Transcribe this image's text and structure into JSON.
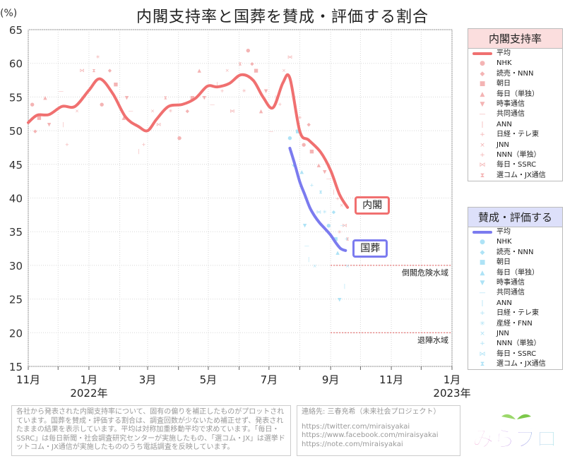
{
  "title": "内閣支持率と国葬を賛成・評価する割合",
  "colors": {
    "cabinet": "#f07070",
    "funeral": "#7b7bef",
    "cabinet_light": "#f4b4b4",
    "funeral_light": "#aee3f6",
    "threshold": "#e05050"
  },
  "chart_data": {
    "type": "line",
    "y_unit": "(%)",
    "ylim": [
      15,
      65
    ],
    "yticks": [
      15,
      20,
      25,
      30,
      35,
      40,
      45,
      50,
      55,
      60,
      65
    ],
    "grid": true,
    "xlim": [
      "2021-11-01",
      "2023-01-01"
    ],
    "x_ticks": [
      {
        "date": "2021-11-01",
        "label": "11月"
      },
      {
        "date": "2022-01-01",
        "label": "1月"
      },
      {
        "date": "2022-03-01",
        "label": "3月"
      },
      {
        "date": "2022-05-01",
        "label": "5月"
      },
      {
        "date": "2022-07-01",
        "label": "7月"
      },
      {
        "date": "2022-09-01",
        "label": "9月"
      },
      {
        "date": "2022-11-01",
        "label": "11月"
      },
      {
        "date": "2023-01-01",
        "label": "1月"
      }
    ],
    "year_labels": [
      {
        "date": "2022-01-01",
        "label": "2022年"
      },
      {
        "date": "2023-01-01",
        "label": "2023年"
      }
    ],
    "thresholds": [
      {
        "value": 30,
        "label": "倒閣危険水域",
        "from": "2022-09-01"
      },
      {
        "value": 20,
        "label": "退陣水域",
        "from": "2022-09-01"
      }
    ],
    "series": [
      {
        "name": "平均",
        "group": "内閣支持率",
        "tag": "内閣",
        "x": [
          "2021-11-01",
          "2021-11-10",
          "2021-11-22",
          "2021-12-05",
          "2021-12-18",
          "2022-01-01",
          "2022-01-12",
          "2022-01-25",
          "2022-02-07",
          "2022-02-20",
          "2022-03-01",
          "2022-03-10",
          "2022-03-22",
          "2022-04-05",
          "2022-04-18",
          "2022-04-30",
          "2022-05-10",
          "2022-05-22",
          "2022-06-03",
          "2022-06-15",
          "2022-06-25",
          "2022-07-05",
          "2022-07-15",
          "2022-07-22",
          "2022-08-01",
          "2022-08-10",
          "2022-08-22",
          "2022-09-01",
          "2022-09-10",
          "2022-09-18"
        ],
        "y": [
          51.2,
          52.3,
          52.4,
          53.6,
          53.6,
          56.0,
          57.7,
          55.5,
          52.0,
          50.6,
          50.0,
          51.7,
          53.6,
          53.9,
          54.8,
          56.6,
          56.5,
          57.0,
          58.3,
          57.5,
          55.0,
          53.4,
          57.1,
          57.8,
          49.9,
          48.6,
          46.8,
          44.1,
          40.5,
          38.6
        ]
      },
      {
        "name": "平均",
        "group": "賛成・評価する",
        "tag": "国葬",
        "x": [
          "2022-07-22",
          "2022-07-27",
          "2022-08-01",
          "2022-08-06",
          "2022-08-11",
          "2022-08-16",
          "2022-08-21",
          "2022-08-26",
          "2022-09-01",
          "2022-09-06",
          "2022-09-11",
          "2022-09-16"
        ],
        "y": [
          47.4,
          45.0,
          42.4,
          40.5,
          38.6,
          37.3,
          36.3,
          35.5,
          34.5,
          33.4,
          32.5,
          32.2
        ]
      }
    ],
    "legend_cabinet": {
      "title": "内閣支持率",
      "items": [
        {
          "label": "平均",
          "marker": "line"
        },
        {
          "label": "NHK",
          "marker": "●"
        },
        {
          "label": "読売・NNN",
          "marker": "◆"
        },
        {
          "label": "朝日",
          "marker": "■"
        },
        {
          "label": "毎日（単独）",
          "marker": "▲"
        },
        {
          "label": "時事通信",
          "marker": "▼"
        },
        {
          "label": "共同通信",
          "marker": "—"
        },
        {
          "label": "ANN",
          "marker": "|"
        },
        {
          "label": "日経・テレ東",
          "marker": "+"
        },
        {
          "label": "JNN",
          "marker": "×"
        },
        {
          "label": "NNN（単独）",
          "marker": "+"
        },
        {
          "label": "毎日・SSRC",
          "marker": "⋈"
        },
        {
          "label": "選コム・JX通信",
          "marker": "⧗"
        }
      ]
    },
    "legend_funeral": {
      "title": "賛成・評価する",
      "items": [
        {
          "label": "平均",
          "marker": "line"
        },
        {
          "label": "NHK",
          "marker": "●"
        },
        {
          "label": "読売・NNN",
          "marker": "◆"
        },
        {
          "label": "朝日",
          "marker": "■"
        },
        {
          "label": "毎日（単独）",
          "marker": "▲"
        },
        {
          "label": "時事通信",
          "marker": "▼"
        },
        {
          "label": "共同通信",
          "marker": "—"
        },
        {
          "label": "ANN",
          "marker": "|"
        },
        {
          "label": "日経・テレ東",
          "marker": "+"
        },
        {
          "label": "産経・FNN",
          "marker": "✳"
        },
        {
          "label": "JNN",
          "marker": "×"
        },
        {
          "label": "NNN（単独）",
          "marker": "+"
        },
        {
          "label": "毎日・SSRC",
          "marker": "⋈"
        },
        {
          "label": "選コム・JX通信",
          "marker": "⧗"
        }
      ]
    },
    "scatter_cabinet": [
      [
        "2021-11-05",
        54
      ],
      [
        "2021-11-08",
        50
      ],
      [
        "2021-11-12",
        52
      ],
      [
        "2021-11-18",
        55
      ],
      [
        "2021-11-22",
        51
      ],
      [
        "2021-12-04",
        56
      ],
      [
        "2021-12-06",
        51
      ],
      [
        "2021-12-10",
        48
      ],
      [
        "2021-12-20",
        53
      ],
      [
        "2021-12-25",
        59
      ],
      [
        "2022-01-06",
        59
      ],
      [
        "2022-01-10",
        61
      ],
      [
        "2022-01-14",
        54
      ],
      [
        "2022-01-22",
        59
      ],
      [
        "2022-01-28",
        57
      ],
      [
        "2022-02-05",
        52
      ],
      [
        "2022-02-08",
        55
      ],
      [
        "2022-02-12",
        53
      ],
      [
        "2022-02-20",
        47
      ],
      [
        "2022-02-25",
        48
      ],
      [
        "2022-03-06",
        53
      ],
      [
        "2022-03-12",
        51
      ],
      [
        "2022-03-19",
        55
      ],
      [
        "2022-03-24",
        53
      ],
      [
        "2022-04-02",
        49
      ],
      [
        "2022-04-10",
        53
      ],
      [
        "2022-04-15",
        55
      ],
      [
        "2022-04-22",
        59
      ],
      [
        "2022-04-27",
        55
      ],
      [
        "2022-05-05",
        54
      ],
      [
        "2022-05-10",
        57
      ],
      [
        "2022-05-15",
        56
      ],
      [
        "2022-05-20",
        59
      ],
      [
        "2022-05-25",
        53
      ],
      [
        "2022-06-02",
        60
      ],
      [
        "2022-06-06",
        56
      ],
      [
        "2022-06-10",
        62
      ],
      [
        "2022-06-14",
        60
      ],
      [
        "2022-06-18",
        59
      ],
      [
        "2022-06-23",
        53
      ],
      [
        "2022-06-28",
        56
      ],
      [
        "2022-07-03",
        50
      ],
      [
        "2022-07-08",
        55
      ],
      [
        "2022-07-12",
        54
      ],
      [
        "2022-07-16",
        59
      ],
      [
        "2022-07-22",
        61
      ],
      [
        "2022-07-26",
        55
      ],
      [
        "2022-08-01",
        52
      ],
      [
        "2022-08-05",
        48
      ],
      [
        "2022-08-10",
        51
      ],
      [
        "2022-08-13",
        47
      ],
      [
        "2022-08-20",
        45
      ],
      [
        "2022-08-26",
        44
      ],
      [
        "2022-08-30",
        43
      ],
      [
        "2022-09-04",
        41
      ],
      [
        "2022-09-08",
        40
      ],
      [
        "2022-09-12",
        39
      ],
      [
        "2022-09-15",
        36
      ],
      [
        "2022-09-18",
        34
      ],
      [
        "2022-09-10",
        35
      ]
    ],
    "scatter_funeral": [
      [
        "2022-07-22",
        49
      ],
      [
        "2022-07-26",
        45
      ],
      [
        "2022-07-30",
        50
      ],
      [
        "2022-08-03",
        44
      ],
      [
        "2022-08-06",
        36
      ],
      [
        "2022-08-08",
        33
      ],
      [
        "2022-08-10",
        31
      ],
      [
        "2022-08-13",
        42
      ],
      [
        "2022-08-16",
        30
      ],
      [
        "2022-08-20",
        38
      ],
      [
        "2022-08-22",
        41
      ],
      [
        "2022-08-26",
        38
      ],
      [
        "2022-08-30",
        36
      ],
      [
        "2022-09-04",
        38
      ],
      [
        "2022-09-06",
        34
      ],
      [
        "2022-09-08",
        32
      ],
      [
        "2022-09-10",
        25
      ],
      [
        "2022-09-13",
        36
      ],
      [
        "2022-09-15",
        27
      ],
      [
        "2022-09-17",
        34
      ],
      [
        "2022-09-18",
        30
      ]
    ]
  },
  "footer": {
    "note": "各社から発表された内閣支持率について、固有の偏りを補正したものがプロットされています。国葬を賛成・評価する割合は、調査回数が少ないため補正せず、発表されたままの結果を表示しています。平均は対称加重移動平均で求めています。「毎日・SSRC」は毎日新聞・社会調査研究センターが実施したもの、「選コム・JX」は選挙ドットコム・JX通信が実施したもののうち電話調査を反映しています。",
    "contact_label": "連絡先: 三春充希（未来社会プロジェクト）",
    "links": [
      "https://twitter.com/miraisyakai",
      "https://www.facebook.com/miraisyakai",
      "https://note.com/miraisyakai"
    ],
    "logo_text": "みらプロ"
  }
}
